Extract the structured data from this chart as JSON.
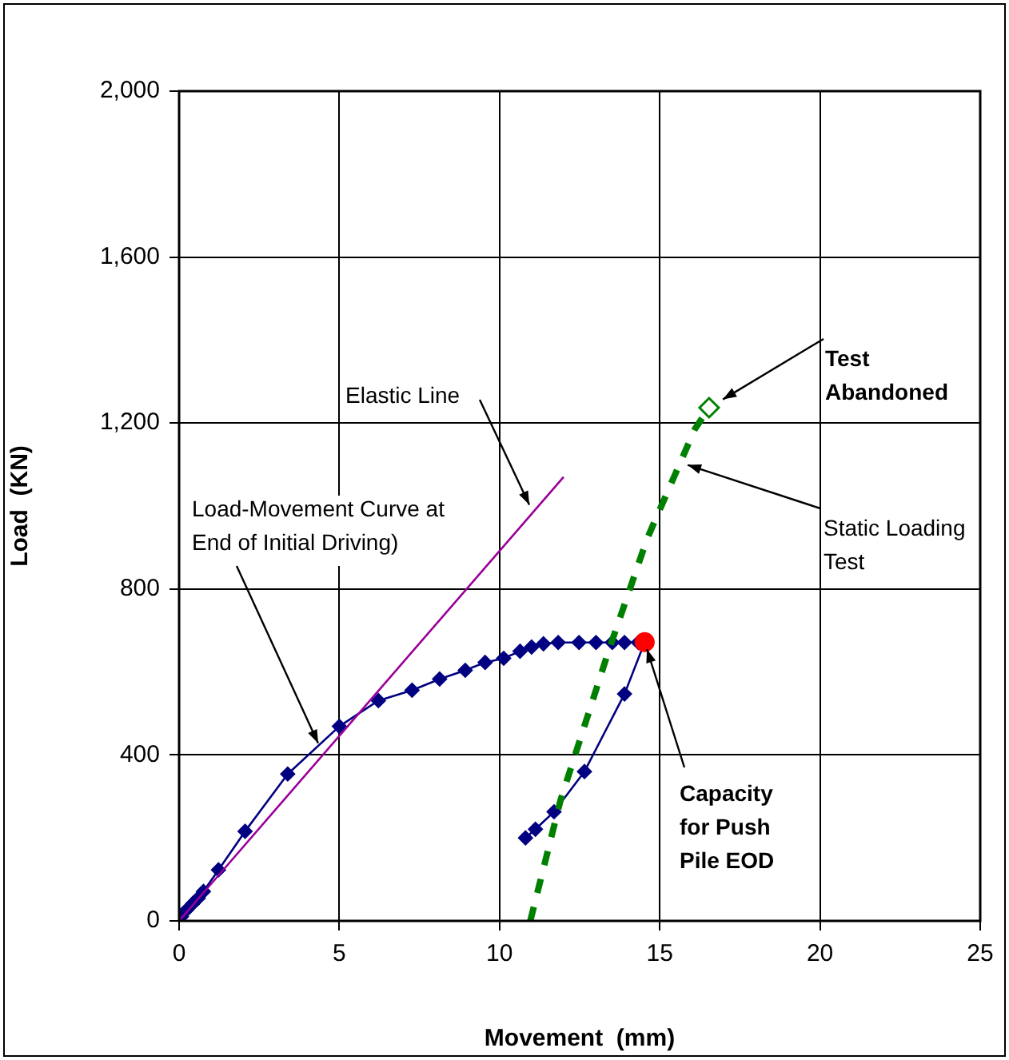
{
  "chart_data": {
    "type": "line",
    "xlabel": "Movement  (mm)",
    "ylabel": "Load  (KN)",
    "xlim": [
      0,
      25
    ],
    "xticks": [
      0,
      5,
      10,
      15,
      20,
      25
    ],
    "ylim": [
      0,
      2000
    ],
    "yticks": [
      0,
      400,
      800,
      {
        "value": 1200,
        "label": "1,200"
      },
      {
        "value": 1600,
        "label": "1,600"
      },
      {
        "value": 2000,
        "label": "2,000"
      }
    ],
    "grid": true,
    "legend": false,
    "series": [
      {
        "color": "#000080",
        "marker": "diamond",
        "line_style": "solid",
        "x": [
          0.07,
          0.23,
          0.43,
          0.6,
          0.76,
          1.23,
          2.06,
          3.39,
          5.0,
          6.22,
          7.27,
          8.13,
          8.93,
          9.55,
          10.13,
          10.64,
          11.0,
          11.37,
          11.83,
          12.48,
          13.01,
          13.52,
          13.9,
          14.33,
          14.53,
          13.9,
          12.65,
          11.7,
          11.12,
          10.81
        ],
        "values": [
          10,
          26,
          42,
          55,
          71,
          123,
          216,
          354,
          469,
          531,
          556,
          583,
          604,
          623,
          633,
          650,
          660,
          668,
          671,
          671,
          671,
          671,
          671,
          671,
          672,
          547,
          360,
          263,
          221,
          200
        ]
      },
      {
        "type": "scatter",
        "color": "#ff0000",
        "marker": "circle",
        "x": [
          14.53
        ],
        "values": [
          672
        ]
      },
      {
        "type": "line",
        "color": "#990099",
        "marker": "none",
        "line_style": "solid",
        "x": [
          0,
          12
        ],
        "values": [
          0,
          1070
        ]
      },
      {
        "type": "line",
        "color": "#008000",
        "marker": "none",
        "line_style": "dashed",
        "x": [
          10.96,
          11.9,
          13.4,
          14.6,
          15.5,
          16.1,
          16.54
        ],
        "values": [
          0,
          290,
          650,
          920,
          1080,
          1186,
          1237
        ]
      },
      {
        "type": "scatter",
        "color": "#008000",
        "marker": "diamond",
        "x": [
          16.54
        ],
        "values": [
          1237
        ]
      }
    ],
    "annotations": [
      {
        "text": "Elastic Line",
        "x": 10.93,
        "y": 1003
      },
      {
        "text": "Load-Movement Curve at End of Initial Driving)",
        "x": 4.34,
        "y": 428
      },
      {
        "text": "Static Loading Test",
        "x": 15.87,
        "y": 1099
      },
      {
        "text": "Test Abandoned",
        "x": 16.97,
        "y": 1257
      },
      {
        "text": "Capacity for Push Pile EOD",
        "x": 14.6,
        "y": 655
      }
    ]
  }
}
